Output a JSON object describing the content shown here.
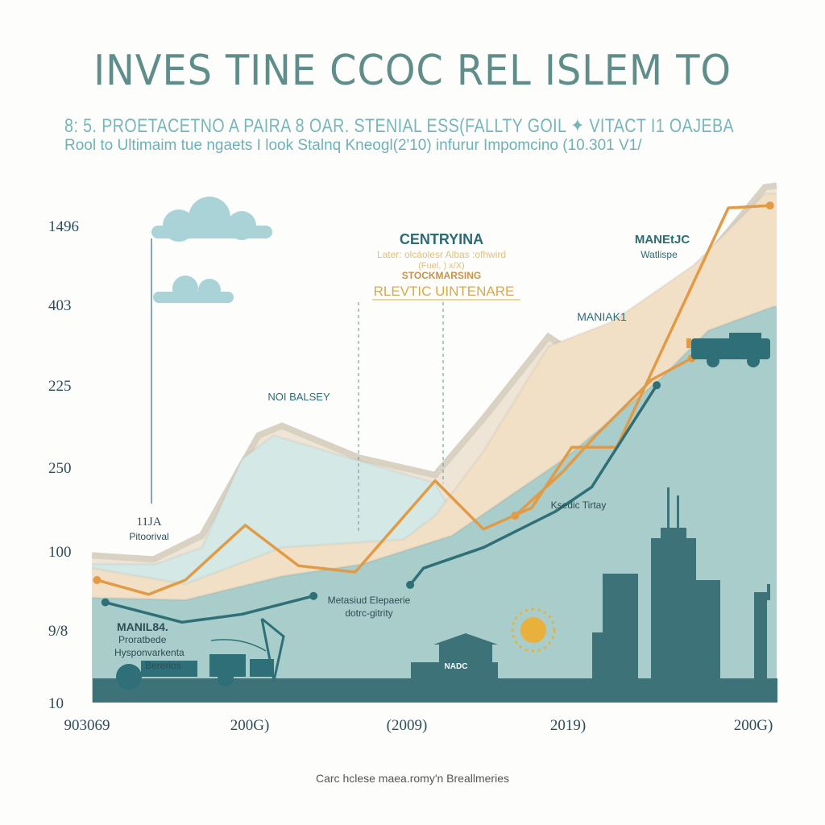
{
  "header": {
    "title": "INVES TINE CCOC REL ISLEM TO",
    "subtitle_1": "8: 5. PROETACETNO A PAIRA 8 OAR. STENIAL ESS(FALLTY GOIL ✦ VITACT I1 OAJEBA",
    "subtitle_2": "Rool to Ultimaim tue  ngaets I look Stalnq Kneogl(2'10) infurur Impomcino (10.301 V1/"
  },
  "footer": {
    "caption": "Carc hclese maea.romy'n Breallmeries"
  },
  "colors": {
    "orange": "#e39a45",
    "teal_line": "#2f6f78",
    "beige_area": "#efe5d6",
    "light_teal_area": "#d4e9e6",
    "peach_area": "#f2e0c6",
    "teal_area": "#a8cdca",
    "ground": "#3d7279",
    "text_teal": "#2d6b73",
    "text_gold": "#d9a94a"
  },
  "annotations": {
    "centryina": "CENTRYINA",
    "centryina_note": "Later: olcáolesr Albas :ofhwird",
    "centryina_note2": "(Fuel, ) x/X)",
    "stockmarsing": "STOCKMARSING",
    "rlevtic": "RLEVTIC UINTENARE",
    "manetjc": "MANEtJC",
    "watlispe": "Watlispe",
    "maniak1": "MANIAK1",
    "noi_balsey": "NOI BALSEY",
    "label_11ja": "11JA",
    "pitoorival": "Pitoorival",
    "metasiud": "Metasiud  Elepaerie",
    "dotrc": "dotrc-gitrity",
    "manil": "MANIL84.",
    "proratbede": "Proratbede",
    "hyspon": "Hysponvarkenta",
    "bererios": "Bererios",
    "ksedic": "Ksedic Tirtay",
    "nadc": "NADC"
  },
  "icons": [
    "cloud-icon",
    "cloud-icon",
    "truck-icon",
    "sun-icon",
    "skyscraper-icon",
    "building-icon",
    "oil-pump-icon",
    "tractor-icon"
  ],
  "chart_data": {
    "type": "area",
    "title": "INVES TINE CCOC REL ISLEM TO",
    "xlabel": "",
    "ylabel": "",
    "x_tick_labels": [
      "903069",
      "200G)",
      "(2009)",
      "2019)",
      "200G)"
    ],
    "y_tick_labels": [
      "10",
      "9/8",
      "100",
      "250",
      "225",
      "403",
      "1496"
    ],
    "xlim": [
      0,
      4.15
    ],
    "ylim": [
      0,
      650
    ],
    "grid": false,
    "legend": "none",
    "areas": [
      {
        "color": "#efe5d6",
        "x": [
          0.03,
          0.4,
          0.69,
          1.03,
          1.17,
          1.63,
          2.09,
          2.38,
          2.77,
          3.15,
          3.64,
          4.07,
          4.14
        ],
        "y": [
          185,
          180,
          210,
          336,
          348,
          308,
          286,
          357,
          460,
          407,
          539,
          648,
          650
        ]
      },
      {
        "color": "#d4e9e6",
        "x": [
          0.03,
          0.41,
          0.69,
          0.93,
          1.12,
          1.6,
          2.09,
          2.3
        ],
        "y": [
          174,
          174,
          195,
          306,
          336,
          306,
          276,
          200
        ]
      },
      {
        "color": "#f2e0c6",
        "x": [
          0.03,
          0.59,
          1.17,
          1.9,
          2.09,
          2.38,
          2.77,
          3.15,
          3.64,
          4.07,
          4.14
        ],
        "y": [
          169,
          149,
          195,
          205,
          235,
          316,
          448,
          479,
          550,
          640,
          640
        ]
      },
      {
        "color": "#a8cdca",
        "x": [
          0.03,
          0.59,
          1.17,
          1.65,
          2.19,
          2.86,
          3.44,
          3.73,
          4.12,
          4.14
        ],
        "y": [
          132,
          129,
          159,
          174,
          210,
          306,
          407,
          468,
          498,
          498
        ]
      }
    ],
    "series": [
      {
        "color": "#e39a45",
        "x": [
          0.06,
          0.37,
          0.59,
          0.95,
          1.27,
          1.61,
          2.09,
          2.38,
          2.67,
          2.91,
          3.18,
          3.44,
          3.85,
          4.1
        ],
        "y": [
          154,
          136,
          154,
          223,
          172,
          164,
          279,
          218,
          245,
          321,
          321,
          438,
          622,
          625
        ]
      },
      {
        "color": "#e39a45",
        "x": [
          2.57,
          2.86,
          3.06,
          3.39,
          3.63
        ],
        "y": [
          235,
          291,
          337,
          406,
          433
        ]
      },
      {
        "color": "#2f6f78",
        "x": [
          0.11,
          0.57,
          0.93,
          1.36
        ],
        "y": [
          126,
          101,
          111,
          134
        ]
      },
      {
        "color": "#2f6f78",
        "x": [
          1.94,
          2.02,
          2.38,
          2.81,
          3.03,
          3.42
        ],
        "y": [
          148,
          169,
          195,
          240,
          271,
          399
        ]
      }
    ]
  }
}
